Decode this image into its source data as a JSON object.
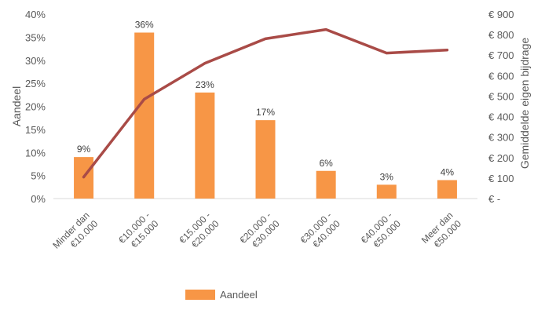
{
  "colors": {
    "bar": "#F79646",
    "line": "#A94B47"
  },
  "legend": {
    "label": "Aandeel",
    "position": "bottom"
  },
  "chart_data": {
    "type": "bar",
    "categories": [
      "Minder dan €10.000",
      "€10.000 - €15.000",
      "€15.000 - €20.000",
      "€20.000 - €30.000",
      "€30.000 - €40.000",
      "€40.000 - €50.000",
      "Meer dan €50.000"
    ],
    "category_label_lines": [
      [
        "Minder dan",
        "€10.000"
      ],
      [
        "€10.000 -",
        "€15.000"
      ],
      [
        "€15.000 -",
        "€20.000"
      ],
      [
        "€20.000 -",
        "€30.000"
      ],
      [
        "€30.000 -",
        "€40.000"
      ],
      [
        "€40.000 -",
        "€50.000"
      ],
      [
        "Meer dan",
        "€50.000"
      ]
    ],
    "series": [
      {
        "name": "Aandeel",
        "type": "bar",
        "axis": "left",
        "values": [
          9,
          36,
          23,
          17,
          6,
          3,
          4
        ],
        "data_labels": [
          "9%",
          "36%",
          "23%",
          "17%",
          "6%",
          "3%",
          "4%"
        ]
      },
      {
        "type": "line",
        "axis": "right",
        "values": [
          105,
          485,
          660,
          780,
          825,
          710,
          725
        ]
      }
    ],
    "y_left": {
      "label": "Aandeel",
      "ylim": [
        0,
        40
      ],
      "ticks": [
        0,
        5,
        10,
        15,
        20,
        25,
        30,
        35,
        40
      ],
      "tick_labels": [
        "0%",
        "5%",
        "10%",
        "15%",
        "20%",
        "25%",
        "30%",
        "35%",
        "40%"
      ]
    },
    "y_right": {
      "label": "Gemiddelde eigen bijdrage",
      "ylim": [
        0,
        900
      ],
      "ticks": [
        0,
        100,
        200,
        300,
        400,
        500,
        600,
        700,
        800,
        900
      ],
      "tick_labels": [
        "€ -",
        "€ 100",
        "€ 200",
        "€ 300",
        "€ 400",
        "€ 500",
        "€ 600",
        "€ 700",
        "€ 800",
        "€ 900"
      ]
    },
    "grid": false
  }
}
